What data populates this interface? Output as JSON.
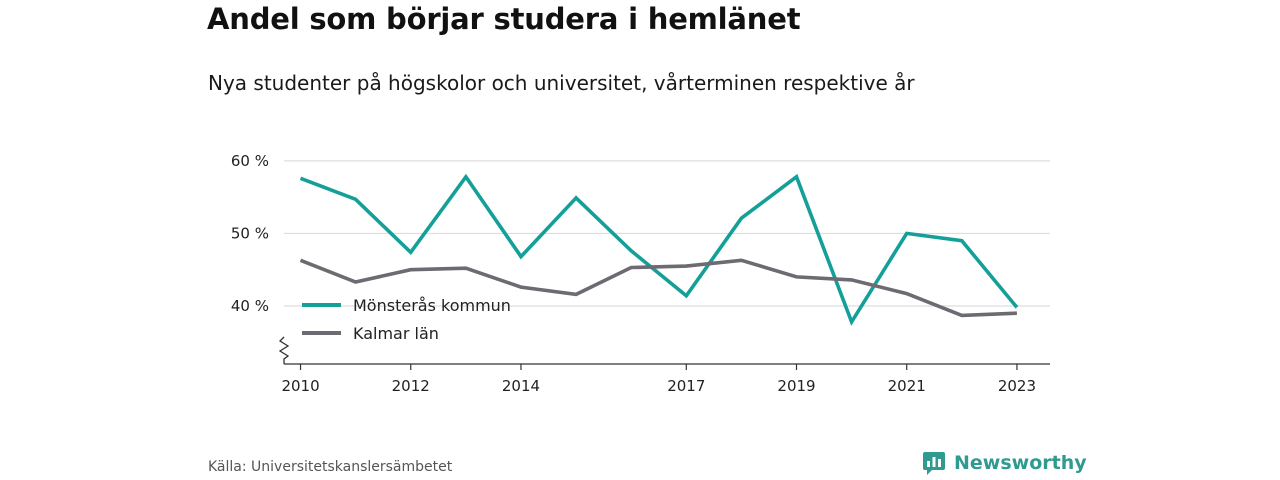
{
  "header": {
    "title": "Andel som börjar studera i hemlänet",
    "subtitle": "Nya studenter på högskolor och universitet, vårterminen respektive år"
  },
  "footer": {
    "source": "Källa: Universitetskanslersämbetet",
    "brand": "Newsworthy",
    "brand_icon": "bar-chart-speech-bubble-icon"
  },
  "colors": {
    "monsteras": "#14a098",
    "kalmar": "#6d6a71",
    "brand": "#2f9a8e",
    "grid": "#dddddd",
    "axis": "#333333"
  },
  "chart_data": {
    "type": "line",
    "title": "Andel som börjar studera i hemlänet",
    "subtitle": "Nya studenter på högskolor och universitet, vårterminen respektive år",
    "x": [
      2010,
      2011,
      2012,
      2013,
      2014,
      2015,
      2016,
      2017,
      2018,
      2019,
      2020,
      2021,
      2022,
      2023
    ],
    "x_tick_values": [
      2010,
      2012,
      2014,
      2017,
      2019,
      2021,
      2023
    ],
    "x_tick_labels": [
      "2010",
      "2012",
      "2014",
      "2017",
      "2019",
      "2021",
      "2023"
    ],
    "y_ticks": [
      40,
      50,
      60
    ],
    "y_tick_labels": [
      "40 %",
      "50 %",
      "60 %"
    ],
    "ylim": [
      32,
      61.5
    ],
    "xlim": [
      2009.7,
      2023.6
    ],
    "axis_break": true,
    "grid": true,
    "legend_position": "bottom-left",
    "series": [
      {
        "name": "Mönsterås kommun",
        "color": "#14a098",
        "values": [
          57.6,
          54.7,
          47.4,
          57.8,
          46.8,
          54.9,
          47.6,
          41.4,
          52.1,
          57.8,
          37.8,
          50.0,
          49.0,
          39.8
        ]
      },
      {
        "name": "Kalmar län",
        "color": "#6d6a71",
        "values": [
          46.3,
          43.3,
          45.0,
          45.2,
          42.6,
          41.6,
          45.3,
          45.5,
          46.3,
          44.0,
          43.6,
          41.7,
          38.7,
          39.0
        ]
      }
    ]
  }
}
